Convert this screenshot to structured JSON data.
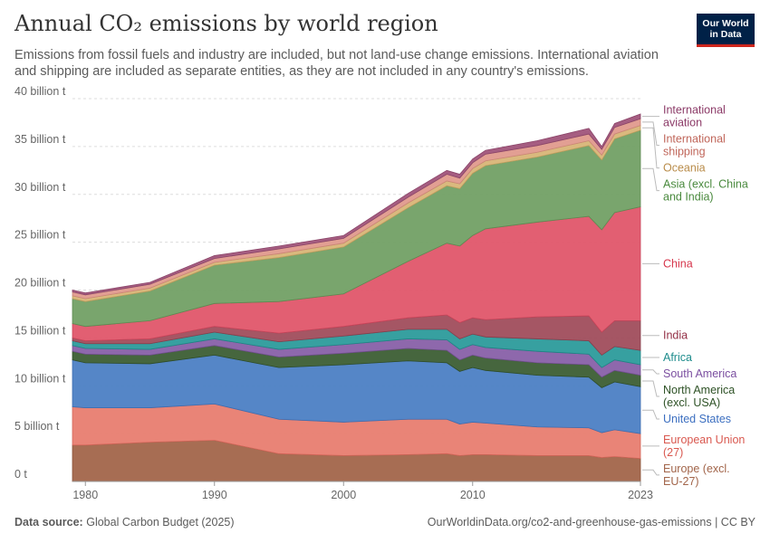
{
  "header": {
    "title": "Annual CO₂ emissions by world region",
    "subtitle": "Emissions from fossil fuels and industry are included, but not land-use change emissions. International aviation and shipping are included as separate entities, as they are not included in any country's emissions.",
    "logo_line1": "Our World",
    "logo_line2": "in Data"
  },
  "footer": {
    "source_label": "Data source:",
    "source_text": "Global Carbon Budget (2025)",
    "url_text": "OurWorldinData.org/co2-and-greenhouse-gas-emissions | CC BY"
  },
  "chart_data": {
    "type": "area",
    "stacked": true,
    "x": [
      1979,
      1980,
      1985,
      1990,
      1995,
      2000,
      2005,
      2008,
      2009,
      2010,
      2011,
      2015,
      2019,
      2020,
      2021,
      2023
    ],
    "ylim": [
      0,
      40
    ],
    "yticks": [
      0,
      5,
      10,
      15,
      20,
      25,
      30,
      35,
      40
    ],
    "ytick_labels": [
      "0 t",
      "5 billion t",
      "10 billion t",
      "15 billion t",
      "20 billion t",
      "25 billion t",
      "30 billion t",
      "35 billion t",
      "40 billion t"
    ],
    "xtick_labels": [
      "1980",
      "1990",
      "2000",
      "2010",
      "2023"
    ],
    "xticks": [
      1980,
      1990,
      2000,
      2010,
      2023
    ],
    "grid": true,
    "legend_placement": "right",
    "series": [
      {
        "name": "Europe (excl. EU-27)",
        "label": [
          "Europe (excl.",
          "EU-27)"
        ],
        "color": "#a2654a",
        "stroke": "#8a5238",
        "label_color": "#a2654a",
        "values": [
          3.8,
          3.8,
          4.1,
          4.3,
          2.9,
          2.7,
          2.8,
          2.9,
          2.7,
          2.8,
          2.8,
          2.7,
          2.7,
          2.5,
          2.6,
          2.4
        ]
      },
      {
        "name": "European Union (27)",
        "label": [
          "European Union",
          "(27)"
        ],
        "color": "#e87d70",
        "stroke": "#d4665a",
        "label_color": "#d9584f",
        "values": [
          4.0,
          3.9,
          3.6,
          3.8,
          3.6,
          3.5,
          3.7,
          3.6,
          3.3,
          3.4,
          3.3,
          3.0,
          2.9,
          2.6,
          2.8,
          2.6
        ]
      },
      {
        "name": "United States",
        "label": [
          "United States"
        ],
        "color": "#4c7fc4",
        "stroke": "#3d6db0",
        "label_color": "#3c6fc0",
        "values": [
          4.9,
          4.7,
          4.6,
          5.1,
          5.4,
          6.0,
          6.1,
          5.9,
          5.5,
          5.7,
          5.5,
          5.4,
          5.3,
          4.7,
          5.0,
          4.9
        ]
      },
      {
        "name": "North America (excl. USA)",
        "label": [
          "North America",
          "(excl. USA)"
        ],
        "color": "#3c5e34",
        "stroke": "#2f4d28",
        "label_color": "#2e5226",
        "values": [
          0.9,
          0.9,
          0.9,
          1.0,
          1.1,
          1.2,
          1.3,
          1.3,
          1.2,
          1.3,
          1.3,
          1.3,
          1.3,
          1.1,
          1.2,
          1.2
        ]
      },
      {
        "name": "South America",
        "label": [
          "South America"
        ],
        "color": "#8860a8",
        "stroke": "#72508f",
        "label_color": "#7b4fa0",
        "values": [
          0.6,
          0.6,
          0.6,
          0.7,
          0.8,
          0.9,
          1.0,
          1.1,
          1.1,
          1.1,
          1.1,
          1.2,
          1.1,
          1.0,
          1.1,
          1.1
        ]
      },
      {
        "name": "Africa",
        "label": [
          "Africa"
        ],
        "color": "#2c9b9b",
        "stroke": "#1f8585",
        "label_color": "#1e8c8c",
        "values": [
          0.5,
          0.5,
          0.6,
          0.7,
          0.8,
          0.9,
          1.0,
          1.1,
          1.1,
          1.1,
          1.1,
          1.3,
          1.4,
          1.3,
          1.4,
          1.5
        ]
      },
      {
        "name": "India",
        "label": [
          "India"
        ],
        "color": "#a04d5c",
        "stroke": "#883e4c",
        "label_color": "#932f45",
        "values": [
          0.3,
          0.3,
          0.5,
          0.6,
          0.9,
          1.0,
          1.2,
          1.5,
          1.7,
          1.7,
          1.8,
          2.3,
          2.6,
          2.4,
          2.7,
          3.1
        ]
      },
      {
        "name": "China",
        "label": [
          "China"
        ],
        "color": "#e0566a",
        "stroke": "#c9455a",
        "label_color": "#d6364c",
        "values": [
          1.5,
          1.5,
          1.9,
          2.4,
          3.3,
          3.4,
          5.9,
          7.5,
          8.0,
          8.6,
          9.5,
          9.9,
          10.4,
          10.7,
          11.3,
          11.9
        ]
      },
      {
        "name": "Asia (excl. China and India)",
        "label": [
          "Asia (excl. China",
          "and India)"
        ],
        "color": "#72a065",
        "stroke": "#5e8b52",
        "label_color": "#4a8a3e",
        "values": [
          2.6,
          2.6,
          3.1,
          4.0,
          4.6,
          4.9,
          5.6,
          6.0,
          6.0,
          6.5,
          6.6,
          6.8,
          7.4,
          7.3,
          7.7,
          8.0
        ]
      },
      {
        "name": "Oceania",
        "label": [
          "Oceania"
        ],
        "color": "#d8b577",
        "stroke": "#c39f5f",
        "label_color": "#b98c4a",
        "values": [
          0.3,
          0.3,
          0.3,
          0.3,
          0.4,
          0.4,
          0.5,
          0.5,
          0.5,
          0.5,
          0.5,
          0.5,
          0.5,
          0.5,
          0.5,
          0.5
        ]
      },
      {
        "name": "International shipping",
        "label": [
          "International",
          "shipping"
        ],
        "color": "#e09a8d",
        "stroke": "#cb8577",
        "label_color": "#c0665a",
        "values": [
          0.4,
          0.4,
          0.4,
          0.4,
          0.5,
          0.5,
          0.6,
          0.7,
          0.6,
          0.6,
          0.7,
          0.7,
          0.7,
          0.6,
          0.7,
          0.7
        ]
      },
      {
        "name": "International aviation",
        "label": [
          "International",
          "aviation"
        ],
        "color": "#a0547a",
        "stroke": "#8a4468",
        "label_color": "#8c3b68",
        "values": [
          0.2,
          0.2,
          0.2,
          0.3,
          0.3,
          0.3,
          0.4,
          0.4,
          0.4,
          0.4,
          0.4,
          0.5,
          0.6,
          0.3,
          0.4,
          0.5
        ]
      }
    ]
  }
}
